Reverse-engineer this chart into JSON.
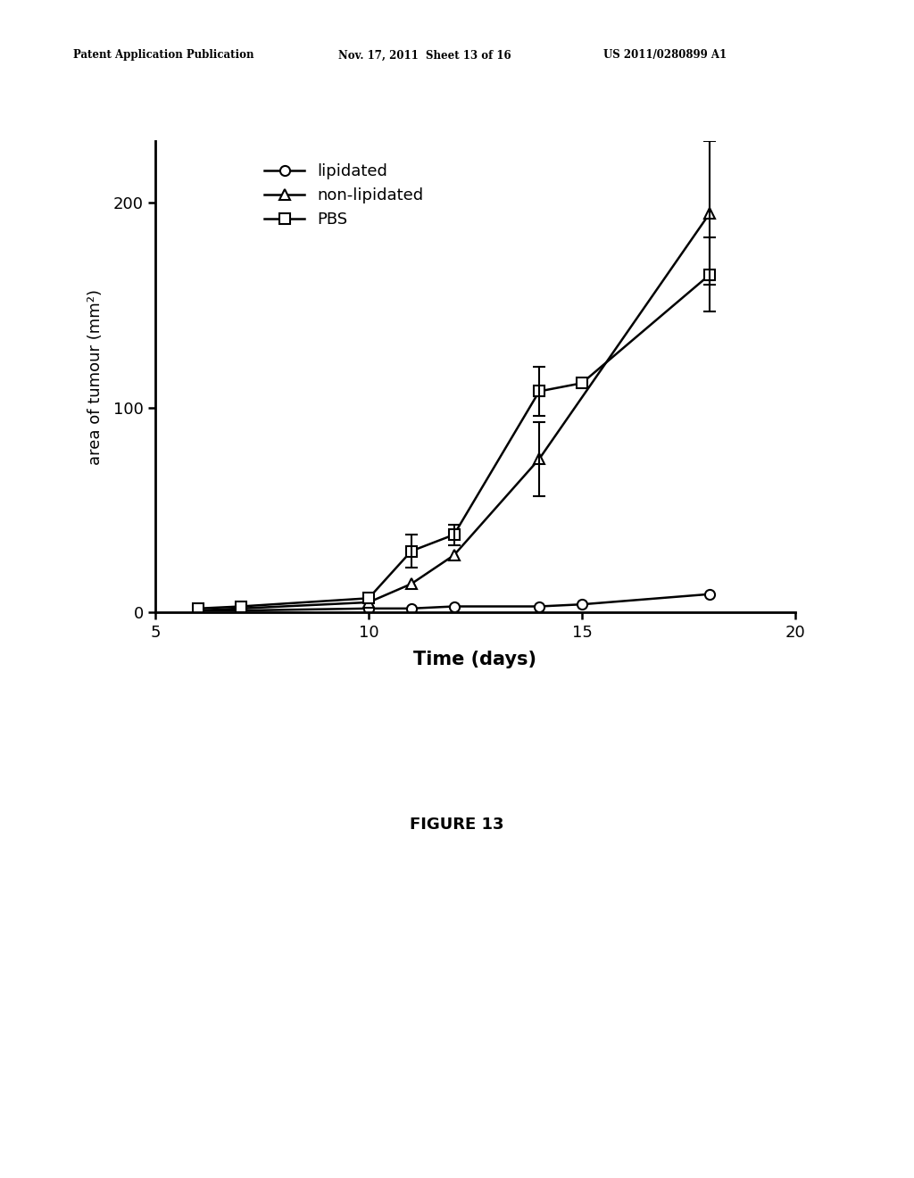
{
  "lipidated_x": [
    6,
    7,
    10,
    11,
    12,
    14,
    15,
    18
  ],
  "lipidated_y": [
    1,
    1,
    2,
    2,
    3,
    3,
    4,
    9
  ],
  "lipidated_yerr": [
    null,
    null,
    null,
    null,
    null,
    null,
    null,
    null
  ],
  "non_lipidated_x": [
    6,
    7,
    10,
    11,
    12,
    14,
    18
  ],
  "non_lipidated_y": [
    1,
    2,
    5,
    14,
    28,
    75,
    195
  ],
  "non_lipidated_yerr": [
    null,
    null,
    null,
    null,
    null,
    18,
    35
  ],
  "pbs_x": [
    6,
    7,
    10,
    11,
    12,
    14,
    15,
    18
  ],
  "pbs_y": [
    2,
    3,
    7,
    30,
    38,
    108,
    112,
    165
  ],
  "pbs_yerr": [
    null,
    null,
    null,
    8,
    5,
    12,
    null,
    18
  ],
  "xlim": [
    5,
    20
  ],
  "ylim": [
    -5,
    230
  ],
  "ylim_plot": [
    0,
    230
  ],
  "xticks": [
    5,
    10,
    15,
    20
  ],
  "yticks": [
    0,
    100,
    200
  ],
  "xlabel": "Time (days)",
  "ylabel": "area of tumour (mm²)",
  "legend_labels": [
    "lipidated",
    "non-lipidated",
    "PBS"
  ],
  "figure_label": "FIGURE 13",
  "header_left": "Patent Application Publication",
  "header_mid": "Nov. 17, 2011  Sheet 13 of 16",
  "header_right": "US 2011/0280899 A1",
  "bg_color": "#ffffff",
  "line_color": "#000000"
}
